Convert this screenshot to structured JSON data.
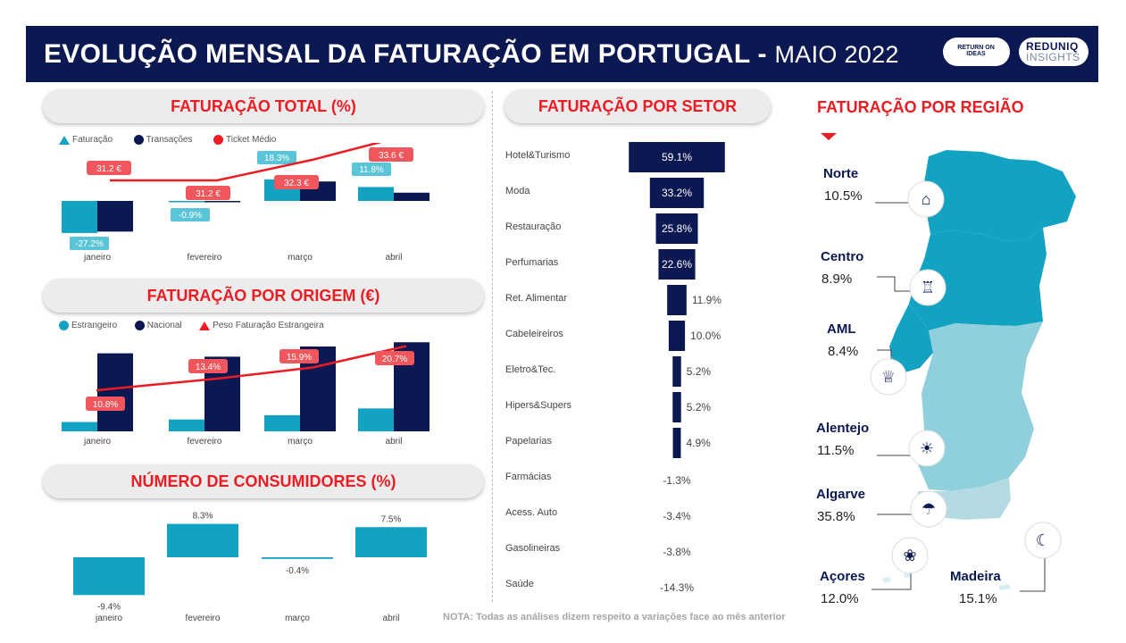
{
  "header": {
    "title": "EVOLUÇÃO MENSAL DA FATURAÇÃO EM PORTUGAL -",
    "subtitle": "MAIO 2022",
    "logo_roi": "RETURN ON IDEAS",
    "logo_reduniq_top": "REDUNIQ",
    "logo_reduniq_bottom": "INSIGHTS"
  },
  "colors": {
    "navy": "#0c1852",
    "teal": "#13a3c2",
    "red": "#ec1c24",
    "light_teal": "#5bc5d8"
  },
  "sections": {
    "total": "FATURAÇÃO TOTAL (%)",
    "origem": "FATURAÇÃO POR ORIGEM (€)",
    "consumidores": "NÚMERO DE CONSUMIDORES (%)",
    "setor": "FATURAÇÃO POR SETOR",
    "regiao": "FATURAÇÃO POR REGIÃO"
  },
  "note": "NOTA: Todas as análises dizem respeito a variações face ao mês anterior",
  "chart_data": [
    {
      "type": "bar",
      "title": "FATURAÇÃO TOTAL (%)",
      "categories": [
        "janeiro",
        "fevereiro",
        "março",
        "abril"
      ],
      "series": [
        {
          "name": "Faturação",
          "values": [
            -27.2,
            -0.9,
            18.3,
            11.8
          ],
          "labels": [
            "-27.2%",
            "-0.9%",
            "18.3%",
            "11.8%"
          ]
        },
        {
          "name": "Transações",
          "values": [
            -26.0,
            -0.6,
            16.5,
            7.0
          ]
        },
        {
          "name": "Ticket Médio",
          "values": [
            31.2,
            31.2,
            32.3,
            33.6
          ],
          "labels": [
            "31.2 €",
            "31.2 €",
            "32.3 €",
            "33.6 €"
          ]
        }
      ],
      "legend": [
        "Faturação",
        "Transações",
        "Ticket Médio"
      ]
    },
    {
      "type": "bar",
      "title": "FATURAÇÃO POR ORIGEM (€)",
      "categories": [
        "janeiro",
        "fevereiro",
        "março",
        "abril"
      ],
      "series": [
        {
          "name": "Estrangeiro",
          "values": [
            11,
            14,
            19,
            27
          ]
        },
        {
          "name": "Nacional",
          "values": [
            92,
            88,
            100,
            105
          ]
        },
        {
          "name": "Peso Faturação Estrangeira",
          "values": [
            10.8,
            13.4,
            15.9,
            20.7
          ],
          "labels": [
            "10.8%",
            "13.4%",
            "15.9%",
            "20.7%"
          ]
        }
      ],
      "legend": [
        "Estrangeiro",
        "Nacional",
        "Peso Faturação Estrangeira"
      ]
    },
    {
      "type": "bar",
      "title": "NÚMERO DE CONSUMIDORES (%)",
      "categories": [
        "janeiro",
        "fevereiro",
        "março",
        "abril"
      ],
      "values": [
        -9.4,
        8.3,
        -0.4,
        7.5
      ],
      "labels": [
        "-9.4%",
        "8.3%",
        "-0.4%",
        "7.5%"
      ]
    },
    {
      "type": "bar",
      "title": "FATURAÇÃO POR SETOR",
      "categories": [
        "Hotel&Turismo",
        "Moda",
        "Restauração",
        "Perfumarias",
        "Ret. Alimentar",
        "Cabeleireiros",
        "Eletro&Tec.",
        "Hipers&Supers",
        "Papelarias",
        "Farmácias",
        "Acess. Auto",
        "Gasolineiras",
        "Saúde"
      ],
      "values": [
        59.1,
        33.2,
        25.8,
        22.6,
        11.9,
        10.0,
        5.2,
        5.2,
        4.9,
        -1.3,
        -3.4,
        -3.8,
        -14.3
      ],
      "labels": [
        "59.1%",
        "33.2%",
        "25.8%",
        "22.6%",
        "11.9%",
        "10.0%",
        "5.2%",
        "5.2%",
        "4.9%",
        "-1.3%",
        "-3.4%",
        "-3.8%",
        "-14.3%"
      ]
    }
  ],
  "regions": [
    {
      "name": "Norte",
      "value": "10.5%"
    },
    {
      "name": "Centro",
      "value": "8.9%"
    },
    {
      "name": "AML",
      "value": "8.4%"
    },
    {
      "name": "Alentejo",
      "value": "11.5%"
    },
    {
      "name": "Algarve",
      "value": "35.8%"
    },
    {
      "name": "Açores",
      "value": "12.0%"
    },
    {
      "name": "Madeira",
      "value": "15.1%"
    }
  ],
  "region_icons": [
    "bridge-icon",
    "palace-icon",
    "tower-icon",
    "sun-field-icon",
    "beach-chair-icon",
    "pineapple-icon",
    "banana-icon"
  ]
}
